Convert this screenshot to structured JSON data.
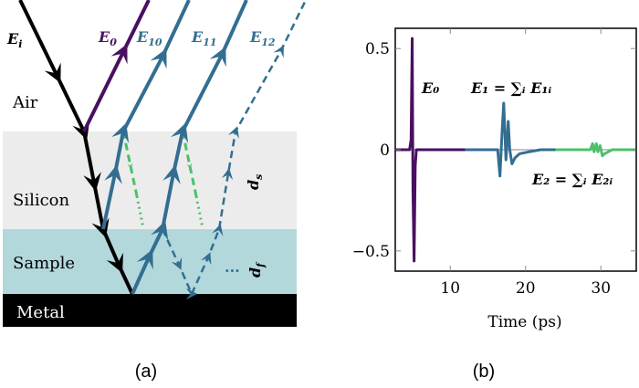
{
  "panel_a": {
    "caption": "(a)",
    "layers": {
      "air": "Air",
      "silicon": "Silicon",
      "sample": "Sample",
      "metal": "Metal"
    },
    "beams": {
      "incident": "E",
      "incident_sub": "i",
      "e0": "E",
      "e0_sub": "0",
      "e10": "E",
      "e10_sub": "10",
      "e11": "E",
      "e11_sub": "11",
      "e12": "E",
      "e12_sub": "12"
    },
    "thickness": {
      "silicon": "d",
      "silicon_sub": "s",
      "sample": "d",
      "sample_sub": "f"
    },
    "ellipsis": "...",
    "colors": {
      "silicon": "#ececec",
      "sample": "#b2d8dc",
      "metal": "#000000",
      "incident": "#000000",
      "e0": "#4a1060",
      "e1": "#336e91",
      "e2": "#4cc06a"
    }
  },
  "panel_b": {
    "caption": "(b)",
    "labels": {
      "e0": "E₀",
      "e1": "E₁ = ∑ᵢ E₁ᵢ",
      "e2": "E₂ = ∑ᵢ E₂ᵢ"
    }
  },
  "chart_data": {
    "type": "line",
    "xlabel": "Time (ps)",
    "ylabel": "",
    "xlim": [
      2.7,
      34.7
    ],
    "ylim": [
      -0.6,
      0.6
    ],
    "xticks": [
      10,
      20,
      30
    ],
    "yticks": [
      0.5,
      0,
      -0.5
    ],
    "ytick_labels": [
      "0.5",
      "0",
      "−0.5"
    ],
    "grid": false,
    "series": [
      {
        "name": "E₀",
        "color": "#4a1060",
        "x": [
          2.7,
          4.6,
          4.8,
          4.95,
          5.05,
          5.2,
          5.35,
          5.5,
          12
        ],
        "y": [
          0,
          0,
          0.05,
          0.55,
          -0.2,
          -0.55,
          -0.08,
          0,
          0
        ]
      },
      {
        "name": "E₁",
        "color": "#336e91",
        "x": [
          12,
          16.3,
          16.6,
          16.9,
          17.1,
          17.4,
          17.7,
          17.9,
          18.2,
          18.6,
          19.2,
          20.5,
          22,
          24
        ],
        "y": [
          0,
          0,
          -0.13,
          0.1,
          0.23,
          -0.05,
          0.14,
          0.0,
          -0.07,
          -0.04,
          -0.02,
          -0.01,
          0,
          0
        ]
      },
      {
        "name": "E₂",
        "color": "#4cc06a",
        "x": [
          24,
          28.6,
          28.9,
          29.1,
          29.4,
          29.6,
          29.9,
          30.2,
          30.5,
          31,
          31.5,
          34.7
        ],
        "y": [
          0,
          0,
          0.03,
          -0.01,
          0.03,
          -0.01,
          0.02,
          -0.03,
          -0.02,
          -0.01,
          0,
          0
        ]
      }
    ]
  }
}
